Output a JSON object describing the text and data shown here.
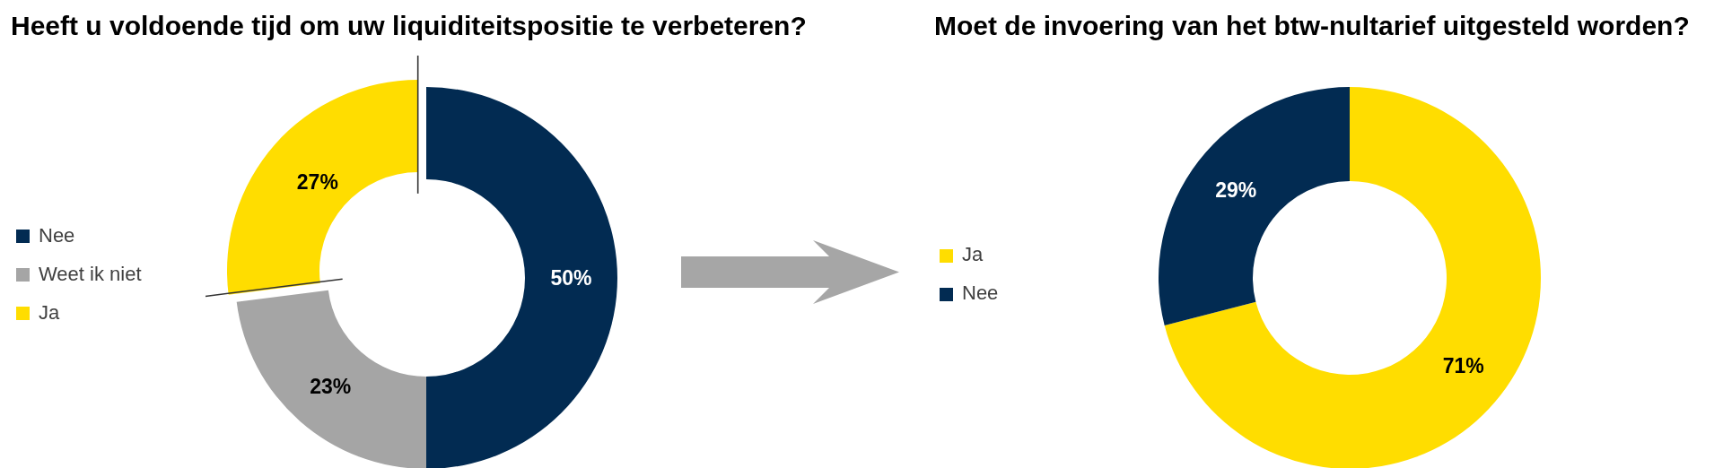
{
  "chart_data": [
    {
      "type": "donut",
      "title": "Heeft u voldoende tijd om uw liquiditeitspositie te verbeteren?",
      "categories": [
        "Nee",
        "Weet ik niet",
        "Ja"
      ],
      "values": [
        50,
        23,
        27
      ],
      "colors": [
        "#022b52",
        "#a5a5a5",
        "#ffdd00"
      ],
      "value_labels": [
        "50%",
        "23%",
        "27%"
      ],
      "legend": "left"
    },
    {
      "type": "donut",
      "title": "Moet de invoering van het btw-nultarief uitgesteld worden?",
      "categories": [
        "Ja",
        "Nee"
      ],
      "values": [
        71,
        29
      ],
      "colors": [
        "#ffdd00",
        "#022b52"
      ],
      "value_labels": [
        "71%",
        "29%"
      ],
      "legend": "left"
    }
  ]
}
